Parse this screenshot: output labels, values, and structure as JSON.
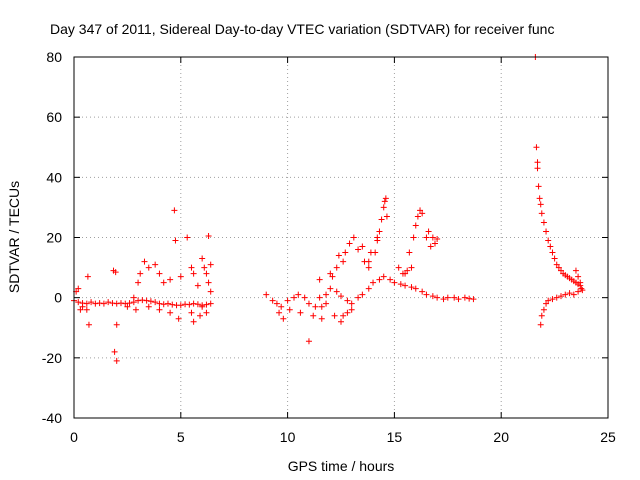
{
  "chart_data": {
    "type": "scatter",
    "title": "Day 347 of 2011, Sidereal Day-to-day VTEC variation (SDTVAR) for receiver func",
    "xlabel": "GPS time / hours",
    "ylabel": "SDTVAR / TECUs",
    "xlim": [
      0,
      25
    ],
    "ylim": [
      -40,
      80
    ],
    "xticks": [
      0,
      5,
      10,
      15,
      20,
      25
    ],
    "yticks": [
      -40,
      -20,
      0,
      20,
      40,
      60,
      80
    ],
    "grid": true,
    "marker": "+",
    "colors": {
      "series": "#ff0000",
      "axis": "#000000",
      "grid": "#a0a0a0"
    },
    "series": [
      {
        "name": "SDTVAR",
        "x": [
          0.0,
          0.2,
          0.4,
          0.6,
          0.8,
          1.0,
          1.2,
          1.4,
          1.6,
          1.8,
          2.0,
          2.2,
          2.4,
          2.6,
          2.8,
          3.0,
          3.2,
          3.4,
          3.6,
          3.8,
          4.0,
          4.2,
          4.4,
          4.6,
          4.8,
          5.0,
          5.2,
          5.4,
          5.6,
          5.8,
          6.0,
          6.2,
          6.4,
          0.1,
          0.2,
          0.3,
          0.4,
          0.6,
          0.7,
          0.65,
          1.9,
          2.0,
          1.85,
          1.95,
          2.0,
          3.0,
          3.1,
          3.3,
          3.5,
          3.8,
          4.0,
          4.2,
          4.5,
          4.7,
          4.75,
          5.0,
          5.3,
          5.5,
          5.6,
          5.8,
          6.0,
          6.1,
          6.2,
          6.3,
          6.4,
          6.2,
          6.0,
          5.9,
          5.5,
          5.6,
          4.9,
          4.5,
          4.0,
          3.5,
          2.9,
          2.8,
          2.5,
          6.3,
          6.4,
          9.0,
          9.3,
          9.5,
          9.7,
          10.0,
          10.3,
          10.5,
          10.8,
          11.0,
          11.3,
          11.5,
          11.8,
          12.0,
          12.3,
          12.5,
          12.8,
          13.0,
          13.3,
          13.5,
          13.8,
          14.0,
          14.3,
          14.5,
          14.8,
          15.0,
          15.3,
          15.5,
          15.8,
          16.0,
          16.3,
          16.5,
          16.8,
          17.0,
          17.3,
          17.5,
          17.8,
          18.0,
          18.3,
          18.5,
          18.7,
          9.6,
          9.8,
          10.1,
          10.6,
          11.0,
          11.2,
          11.6,
          11.8,
          11.5,
          12.0,
          12.1,
          12.3,
          12.4,
          12.6,
          12.7,
          12.9,
          13.1,
          13.3,
          13.5,
          13.6,
          13.8,
          14.1,
          14.2,
          14.3,
          14.4,
          14.5,
          14.55,
          14.6,
          14.65,
          14.2,
          13.9,
          13.8,
          12.5,
          12.2,
          11.6,
          15.2,
          15.5,
          15.7,
          15.9,
          16.0,
          16.1,
          16.2,
          16.3,
          16.5,
          16.6,
          16.7,
          16.8,
          16.9,
          17.0,
          15.4,
          15.6,
          15.8,
          12.8,
          12.6,
          13.0,
          21.6,
          21.65,
          21.7,
          21.7,
          21.75,
          21.8,
          21.85,
          21.9,
          22.0,
          22.1,
          22.2,
          22.3,
          22.4,
          22.5,
          22.6,
          22.7,
          22.8,
          22.9,
          23.0,
          23.1,
          23.2,
          23.3,
          23.4,
          23.5,
          23.6,
          23.7,
          23.75,
          21.9,
          22.0,
          22.1,
          22.2,
          22.4,
          22.6,
          22.8,
          23.0,
          23.2,
          23.4,
          23.6,
          23.7,
          21.85,
          23.5,
          23.6,
          23.8
        ],
        "y": [
          -1.0,
          -1.5,
          -1.8,
          -2.0,
          -1.5,
          -2.0,
          -1.8,
          -2.0,
          -1.5,
          -1.8,
          -2.0,
          -1.8,
          -2.0,
          -1.8,
          -1.5,
          -1.0,
          -0.8,
          -1.0,
          -1.2,
          -1.5,
          -2.0,
          -2.2,
          -2.0,
          -2.3,
          -2.5,
          -2.5,
          -2.2,
          -2.3,
          -2.0,
          -2.2,
          -2.5,
          -2.3,
          -2.0,
          2.0,
          3.0,
          -4.0,
          -3.0,
          -4.0,
          -9.0,
          7.0,
          -18.0,
          -21.0,
          9.0,
          8.5,
          -9.0,
          5.0,
          8.0,
          12.0,
          10.0,
          11.0,
          8.0,
          5.0,
          6.0,
          29.0,
          19.0,
          7.0,
          20.0,
          10.0,
          8.0,
          4.0,
          13.0,
          10.0,
          8.0,
          5.0,
          2.0,
          -5.0,
          -3.0,
          -6.0,
          -5.0,
          -8.0,
          -7.0,
          -5.0,
          -4.0,
          -3.0,
          -4.0,
          0.0,
          -3.0,
          20.5,
          11.0,
          1.0,
          -1.0,
          -2.0,
          -3.0,
          -1.0,
          0.0,
          1.0,
          0.0,
          -2.0,
          -3.0,
          0.0,
          1.0,
          3.0,
          2.0,
          0.5,
          -1.0,
          -2.0,
          0.0,
          1.0,
          3.0,
          5.0,
          6.0,
          7.0,
          6.0,
          5.0,
          4.5,
          4.0,
          3.5,
          3.0,
          2.0,
          1.0,
          0.5,
          0.0,
          -0.5,
          0.0,
          0.0,
          -0.5,
          0.0,
          -0.3,
          -0.5,
          -5.0,
          -7.0,
          -4.0,
          -5.0,
          -14.5,
          -6.0,
          -3.0,
          -2.0,
          6.0,
          8.0,
          7.0,
          10.0,
          14.0,
          12.0,
          15.0,
          18.0,
          20.0,
          16.0,
          17.0,
          12.0,
          10.0,
          15.0,
          19.0,
          22.0,
          26.0,
          30.0,
          32.0,
          33.0,
          27.0,
          20.0,
          15.0,
          12.0,
          -8.0,
          -6.0,
          -7.0,
          10.0,
          8.0,
          15.0,
          20.0,
          24.0,
          27.0,
          29.0,
          28.0,
          20.0,
          22.0,
          17.0,
          20.0,
          18.0,
          19.5,
          8.0,
          9.0,
          10.0,
          -5.0,
          -6.0,
          -4.0,
          80.0,
          50.0,
          45.0,
          43.0,
          37.0,
          33.0,
          31.0,
          28.0,
          25.0,
          22.0,
          19.0,
          17.0,
          15.0,
          13.0,
          11.0,
          10.0,
          9.0,
          8.0,
          7.5,
          7.0,
          6.5,
          6.0,
          5.5,
          5.0,
          4.5,
          4.0,
          3.0,
          -6.0,
          -4.0,
          -2.0,
          -1.0,
          -0.5,
          0.0,
          0.5,
          1.0,
          1.5,
          1.0,
          2.0,
          5.0,
          -9.0,
          9.0,
          7.0,
          2.5
        ]
      }
    ]
  }
}
